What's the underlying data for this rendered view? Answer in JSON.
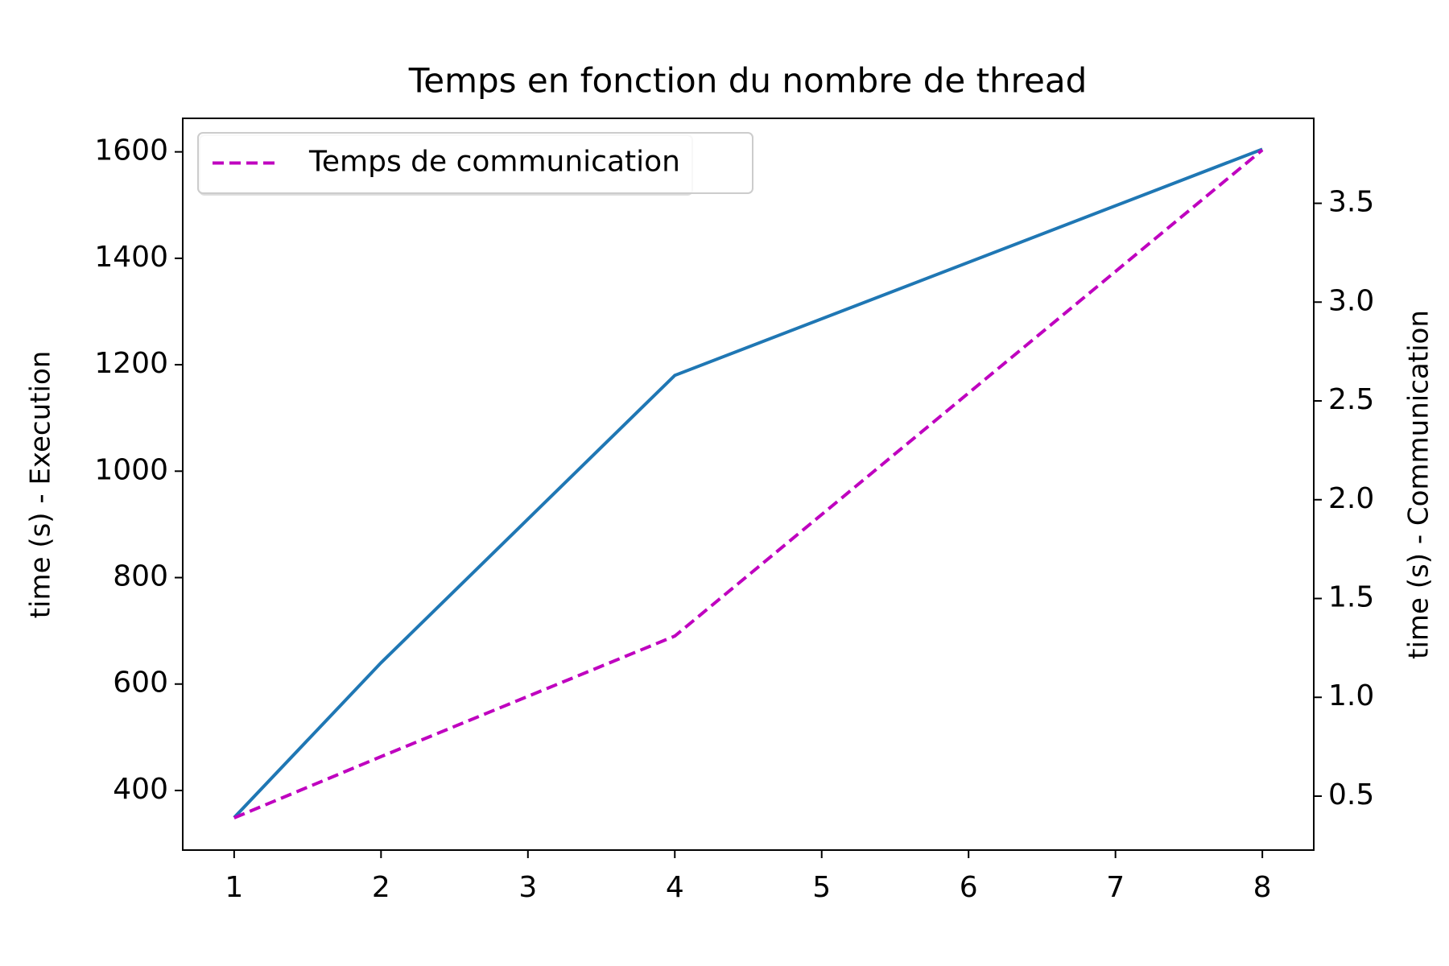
{
  "chart_data": {
    "type": "line",
    "title": "Temps en fonction du nombre de thread",
    "ylabel": "time (s) - Execution",
    "y2label": "time (s) - Communication",
    "x": [
      1,
      2,
      4,
      8
    ],
    "xlim": [
      0.65,
      8.35
    ],
    "xticks": [
      1,
      2,
      3,
      4,
      5,
      6,
      7,
      8
    ],
    "ylim": [
      288,
      1663
    ],
    "yticks": [
      400,
      600,
      800,
      1000,
      1200,
      1400,
      1600
    ],
    "y2lim": [
      0.227,
      3.93
    ],
    "y2ticks": [
      0.5,
      {
        "value": 1.0,
        "label": "1.0"
      },
      1.5,
      {
        "value": 2.0,
        "label": "2.0"
      },
      2.5,
      {
        "value": 3.0,
        "label": "3.0"
      },
      3.5
    ],
    "legend": "upper left",
    "series": [
      {
        "color": "#1f77b4",
        "linestyle": "solid",
        "values": [
          349,
          640,
          1180,
          1605
        ]
      },
      {
        "name": "Temps de communication",
        "color": "#bf00bf",
        "linestyle": "dashed",
        "axis": "y2",
        "values": [
          0.39,
          0.7,
          1.31,
          3.77
        ]
      }
    ]
  }
}
